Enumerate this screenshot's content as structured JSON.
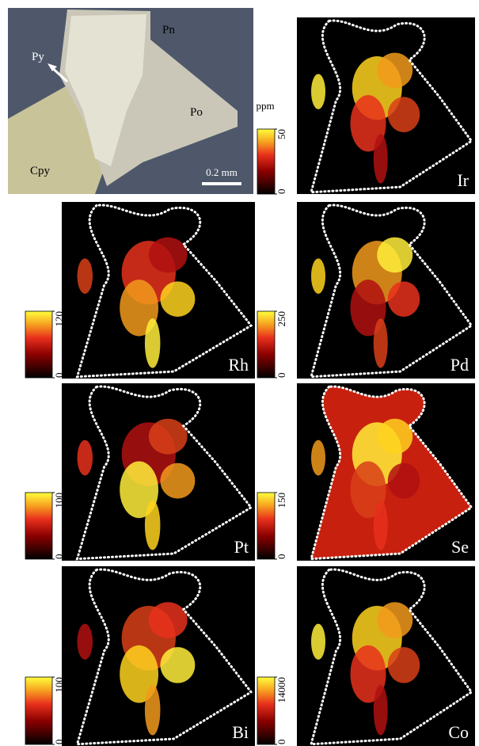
{
  "photo": {
    "labels": [
      "Pn",
      "Py",
      "Po",
      "Cpy"
    ],
    "scale_bar": "0.2 mm"
  },
  "colorbar_unit": "ppm",
  "maps": [
    {
      "element": "Ir",
      "colorbar_ticks": [
        0,
        50
      ]
    },
    {
      "element": "Rh",
      "colorbar_ticks": [
        0,
        120
      ]
    },
    {
      "element": "Pd",
      "colorbar_ticks": [
        0,
        250
      ]
    },
    {
      "element": "Pt",
      "colorbar_ticks": [
        0,
        100
      ]
    },
    {
      "element": "Se",
      "colorbar_ticks": [
        0,
        150
      ]
    },
    {
      "element": "Bi",
      "colorbar_ticks": [
        0,
        100
      ]
    },
    {
      "element": "Co",
      "colorbar_ticks": [
        0,
        14000
      ]
    }
  ]
}
